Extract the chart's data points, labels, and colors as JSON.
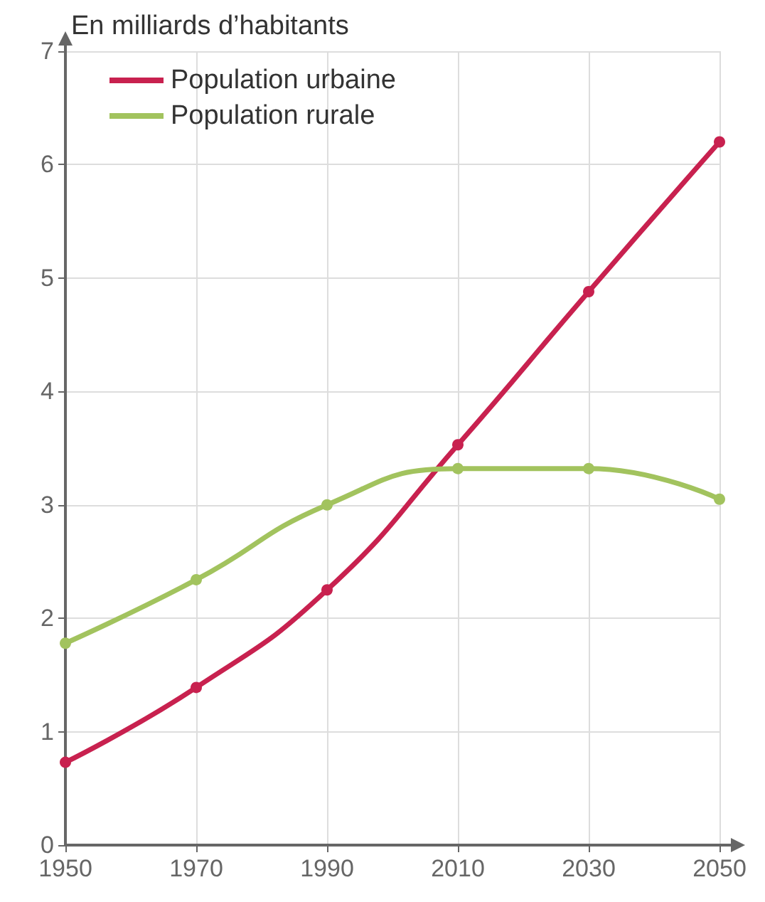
{
  "chart_data": {
    "type": "line",
    "ylabel": "En milliards d’habitants",
    "x": [
      1950,
      1970,
      1990,
      2010,
      2030,
      2050
    ],
    "series": [
      {
        "name": "Population urbaine",
        "color": "#c8214f",
        "values": [
          0.73,
          1.39,
          2.25,
          3.53,
          4.88,
          6.2
        ]
      },
      {
        "name": "Population rurale",
        "color": "#a2c35e",
        "values": [
          1.78,
          2.34,
          3.0,
          3.32,
          3.32,
          3.05
        ]
      }
    ],
    "xlim": [
      1950,
      2050
    ],
    "xticks": [
      1950,
      1970,
      1990,
      2010,
      2030,
      2050
    ],
    "ylim": [
      0,
      7
    ],
    "yticks": [
      0,
      1,
      2,
      3,
      4,
      5,
      6,
      7
    ],
    "grid": true,
    "legend": "top left",
    "marker": "circle",
    "line_style": "solid"
  }
}
